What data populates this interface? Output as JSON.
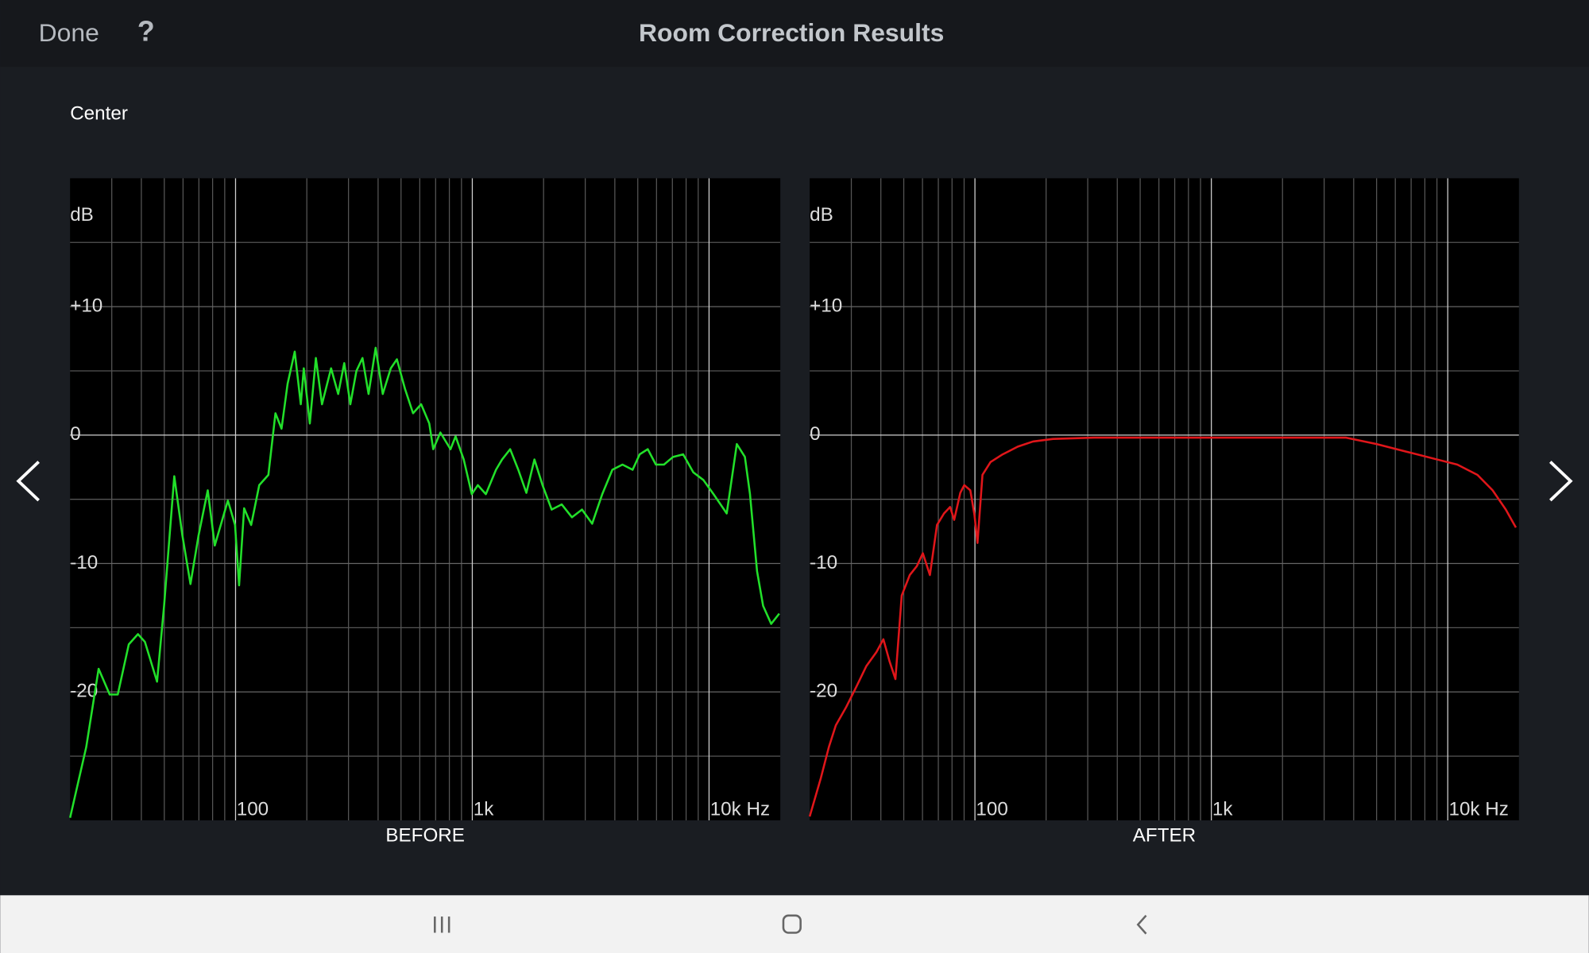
{
  "header": {
    "done": "Done",
    "help": "?",
    "title": "Room Correction Results"
  },
  "channel": "Center",
  "chart_data": [
    {
      "type": "line",
      "caption": "BEFORE",
      "y_label": "dB",
      "color": "#22e02a",
      "x_log": true,
      "xlim": [
        20,
        20000
      ],
      "xticks": [
        100,
        {
          "value": 1000,
          "label": "1k"
        },
        {
          "value": 10000,
          "label": "10k Hz"
        }
      ],
      "x_minor_ticks": [
        30,
        40,
        50,
        60,
        70,
        80,
        90,
        200,
        300,
        400,
        500,
        600,
        700,
        800,
        900,
        2000,
        3000,
        4000,
        5000,
        6000,
        7000,
        8000,
        9000
      ],
      "ylim": [
        -30,
        20
      ],
      "yticks": [
        {
          "value": 10,
          "label": "+10"
        },
        0,
        -10,
        -20
      ],
      "y_minor_ticks": [
        15,
        5,
        -5,
        -15,
        -25
      ],
      "grid": true,
      "x": [
        20,
        23.4,
        26.4,
        29.4,
        31.8,
        35.4,
        38.7,
        41.4,
        46.6,
        49.9,
        55.1,
        59.6,
        64.5,
        69.8,
        76.3,
        81.7,
        92.8,
        99.5,
        103.5,
        108.7,
        116.4,
        125.9,
        137.6,
        147.4,
        156.4,
        165.9,
        177.8,
        188.6,
        194.2,
        205.9,
        218.4,
        231.8,
        253.2,
        271.3,
        287.8,
        305.4,
        324,
        343.7,
        364.6,
        390.6,
        418.5,
        452.6,
        480.3,
        519.6,
        562,
        608,
        658,
        684,
        733,
        809,
        850,
        920,
        995,
        1055,
        1141,
        1259,
        1336,
        1445,
        1564,
        1692,
        1830,
        1980,
        2164,
        2387,
        2635,
        2907,
        3208,
        3539,
        3905,
        4309,
        4754,
        5093,
        5510,
        5962,
        6450,
        7048,
        7775,
        8580,
        9467,
        10446,
        11875,
        13100,
        14170,
        14890,
        15950,
        16920,
        18300,
        19800
      ],
      "values": [
        -29.8,
        -24.3,
        -18.2,
        -20.2,
        -20.2,
        -16.3,
        -15.5,
        -16.1,
        -19.2,
        -13.3,
        -3.2,
        -7.8,
        -11.6,
        -7.8,
        -4.3,
        -8.6,
        -5.1,
        -7,
        -11.7,
        -5.7,
        -7,
        -3.9,
        -3.1,
        1.7,
        0.5,
        4,
        6.5,
        2.4,
        5.2,
        0.9,
        6,
        2.4,
        5.2,
        3.2,
        5.6,
        2.4,
        5,
        6,
        3.2,
        6.8,
        3.2,
        5.2,
        5.9,
        3.6,
        1.7,
        2.4,
        0.9,
        -1.1,
        0.2,
        -1.1,
        -0.1,
        -1.9,
        -4.6,
        -3.9,
        -4.6,
        -2.7,
        -1.9,
        -1.1,
        -2.7,
        -4.5,
        -1.9,
        -3.9,
        -5.8,
        -5.4,
        -6.4,
        -5.8,
        -6.9,
        -4.6,
        -2.7,
        -2.3,
        -2.7,
        -1.5,
        -1.1,
        -2.3,
        -2.3,
        -1.7,
        -1.5,
        -2.9,
        -3.5,
        -4.6,
        -6.1,
        -0.7,
        -1.7,
        -4.6,
        -10.6,
        -13.3,
        -14.7,
        -13.9
      ]
    },
    {
      "type": "line",
      "caption": "AFTER",
      "y_label": "dB",
      "color": "#e0161a",
      "x_log": true,
      "xlim": [
        20,
        20000
      ],
      "xticks": [
        100,
        {
          "value": 1000,
          "label": "1k"
        },
        {
          "value": 10000,
          "label": "10k Hz"
        }
      ],
      "x_minor_ticks": [
        30,
        40,
        50,
        60,
        70,
        80,
        90,
        200,
        300,
        400,
        500,
        600,
        700,
        800,
        900,
        2000,
        3000,
        4000,
        5000,
        6000,
        7000,
        8000,
        9000
      ],
      "ylim": [
        -30,
        20
      ],
      "yticks": [
        {
          "value": 10,
          "label": "+10"
        },
        0,
        -10,
        -20
      ],
      "y_minor_ticks": [
        15,
        5,
        -5,
        -15,
        -25
      ],
      "grid": true,
      "x": [
        20,
        22.3,
        24.1,
        25.8,
        28.5,
        31.5,
        34.7,
        38.3,
        41,
        43.5,
        46.1,
        49,
        53,
        56.8,
        60.2,
        64.5,
        69.1,
        74,
        78.5,
        81.7,
        86.7,
        90.1,
        95.6,
        99.5,
        102.5,
        107.6,
        116.4,
        131,
        151.8,
        176,
        214,
        317.6,
        519.6,
        1035,
        1866,
        3717,
        4994,
        6708,
        9012,
        10976,
        13360,
        15480,
        17600,
        19420
      ],
      "values": [
        -29.7,
        -26.7,
        -24.3,
        -22.6,
        -21.2,
        -19.6,
        -18,
        -16.9,
        -15.9,
        -17.6,
        -19,
        -12.5,
        -10.9,
        -10.2,
        -9.2,
        -10.9,
        -7,
        -6.1,
        -5.6,
        -6.6,
        -4.5,
        -3.9,
        -4.3,
        -6.2,
        -8.4,
        -3.1,
        -2.1,
        -1.5,
        -0.9,
        -0.5,
        -0.3,
        -0.2,
        -0.2,
        -0.2,
        -0.2,
        -0.2,
        -0.7,
        -1.3,
        -1.9,
        -2.3,
        -3.1,
        -4.3,
        -5.8,
        -7.2
      ]
    }
  ]
}
